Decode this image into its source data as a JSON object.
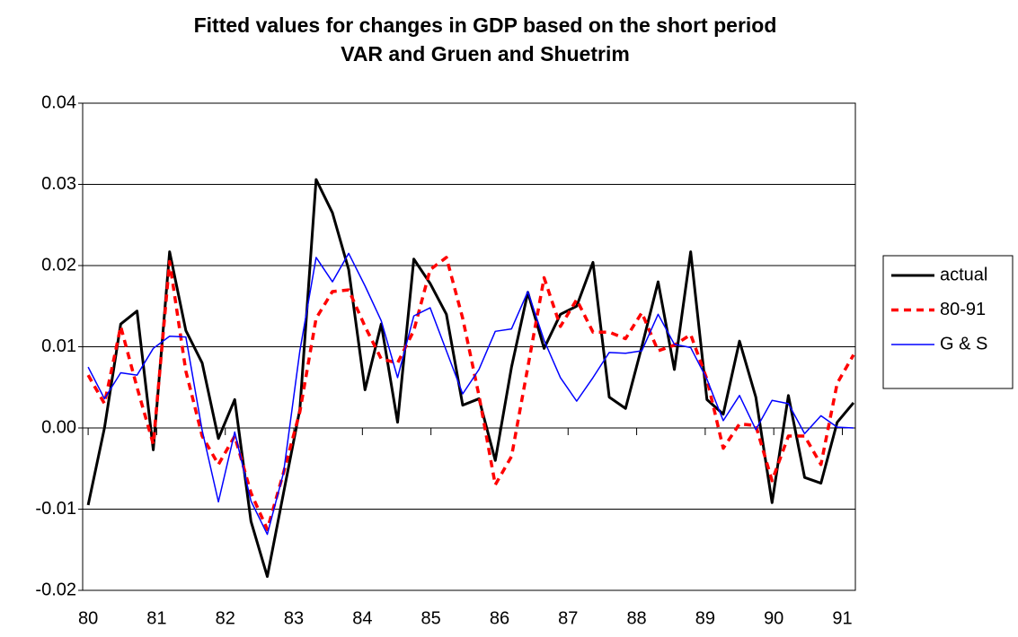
{
  "chart_data": {
    "type": "line",
    "title_lines": [
      "Fitted values for changes in GDP based on the short period",
      "VAR and Gruen and Shuetrim"
    ],
    "x": [
      80,
      80.238,
      80.475,
      80.713,
      80.95,
      81.188,
      81.425,
      81.663,
      81.9,
      82.138,
      82.375,
      82.613,
      82.85,
      83.088,
      83.325,
      83.563,
      83.8,
      84.038,
      84.275,
      84.513,
      84.75,
      84.988,
      85.225,
      85.463,
      85.7,
      85.938,
      86.175,
      86.413,
      86.65,
      86.888,
      87.125,
      87.363,
      87.6,
      87.838,
      88.075,
      88.313,
      88.55,
      88.788,
      89.025,
      89.263,
      89.5,
      89.738,
      89.975,
      90.213,
      90.45,
      90.688,
      90.925,
      91.163
    ],
    "series": [
      {
        "name": "actual",
        "color": "#000000",
        "values": [
          -0.0095,
          0.0,
          0.0128,
          0.0144,
          -0.0027,
          0.0217,
          0.012,
          0.008,
          -0.0013,
          0.0035,
          -0.0115,
          -0.0183,
          -0.008,
          0.0023,
          0.0306,
          0.0265,
          0.0195,
          0.0047,
          0.0128,
          0.0007,
          0.0208,
          0.0178,
          0.014,
          0.0028,
          0.0036,
          -0.004,
          0.0075,
          0.0167,
          0.0098,
          0.014,
          0.015,
          0.0204,
          0.0038,
          0.0024,
          0.01,
          0.018,
          0.0072,
          0.0217,
          0.0035,
          0.0017,
          0.0107,
          0.0038,
          -0.0092,
          0.004,
          -0.0061,
          -0.0068,
          0.0007,
          0.0031
        ]
      },
      {
        "name": "80-91",
        "color": "#ff0000",
        "dashed": true,
        "values": [
          0.0065,
          0.003,
          0.0125,
          0.005,
          -0.002,
          0.0205,
          0.007,
          -0.001,
          -0.0045,
          -0.001,
          -0.008,
          -0.0125,
          -0.0055,
          0.002,
          0.0135,
          0.0168,
          0.017,
          0.0125,
          0.0085,
          0.008,
          0.012,
          0.0195,
          0.021,
          0.0135,
          0.004,
          -0.007,
          -0.0035,
          0.0075,
          0.0185,
          0.0125,
          0.0158,
          0.0118,
          0.0118,
          0.011,
          0.0142,
          0.0095,
          0.0102,
          0.0115,
          0.006,
          -0.0025,
          0.0005,
          0.0003,
          -0.0065,
          -0.001,
          -0.001,
          -0.0045,
          0.0055,
          0.009
        ]
      },
      {
        "name": "G & S",
        "color": "#0000ff",
        "values": [
          0.0075,
          0.0036,
          0.0068,
          0.0065,
          0.0098,
          0.0113,
          0.0112,
          -0.0003,
          -0.0091,
          -0.0005,
          -0.009,
          -0.0131,
          -0.0055,
          0.0095,
          0.021,
          0.018,
          0.0215,
          0.0175,
          0.0132,
          0.0062,
          0.0138,
          0.0148,
          0.0095,
          0.0042,
          0.0072,
          0.0119,
          0.0122,
          0.0168,
          0.0108,
          0.0062,
          0.0033,
          0.0062,
          0.0093,
          0.0092,
          0.0095,
          0.014,
          0.0103,
          0.0099,
          0.006,
          0.0009,
          0.004,
          -0.0002,
          0.0034,
          0.003,
          -0.0007,
          0.0015,
          0.0001,
          0.0
        ]
      }
    ],
    "xlim": [
      79.92,
      91.19
    ],
    "xticks": [
      80,
      81,
      82,
      83,
      84,
      85,
      86,
      87,
      88,
      89,
      90,
      91
    ],
    "ylim": [
      -0.02,
      0.04
    ],
    "yticks": [
      -0.02,
      -0.01,
      {
        "value": 0,
        "label": "0.00"
      },
      0.01,
      0.02,
      0.03,
      0.04
    ],
    "grid": true,
    "legend": "right"
  }
}
